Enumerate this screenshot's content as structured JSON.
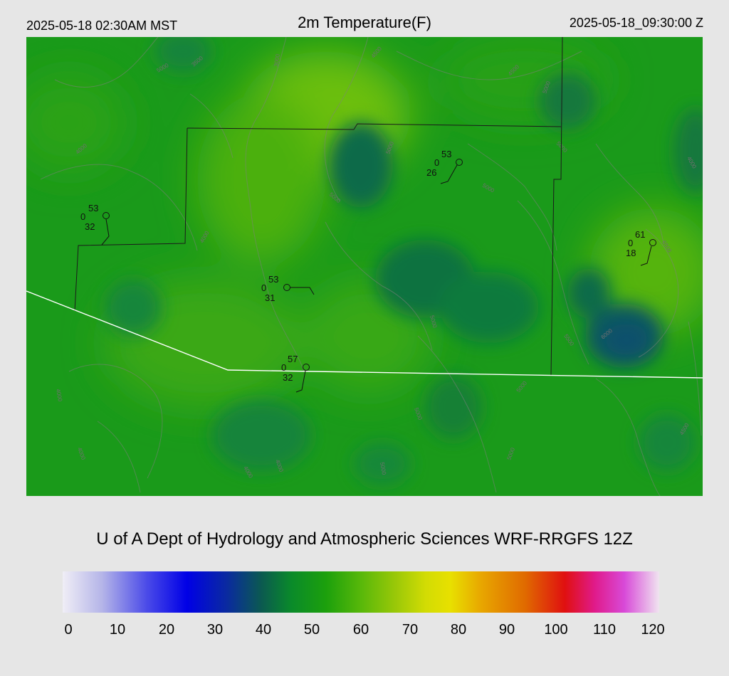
{
  "header": {
    "local_time": "2025-05-18 02:30AM MST",
    "title": "2m Temperature(F)",
    "utc_time": "2025-05-18_09:30:00 Z"
  },
  "credit": "U of A Dept of Hydrology and Atmospheric Sciences WRF-RRGFS 12Z",
  "colorbar": {
    "ticks": [
      "0",
      "10",
      "20",
      "30",
      "40",
      "50",
      "60",
      "70",
      "80",
      "90",
      "100",
      "110",
      "120"
    ],
    "min": 0,
    "max": 120,
    "stops": [
      {
        "value": 0,
        "color": "#f0eef6"
      },
      {
        "value": 8,
        "color": "#b4b4e8"
      },
      {
        "value": 17,
        "color": "#4a4ae8"
      },
      {
        "value": 25,
        "color": "#0000e6"
      },
      {
        "value": 33,
        "color": "#0a2aa0"
      },
      {
        "value": 40,
        "color": "#0b5a50"
      },
      {
        "value": 46,
        "color": "#0a8a2a"
      },
      {
        "value": 53,
        "color": "#1ca00c"
      },
      {
        "value": 60,
        "color": "#58b80a"
      },
      {
        "value": 67,
        "color": "#9ac808"
      },
      {
        "value": 73,
        "color": "#d2dc04"
      },
      {
        "value": 78,
        "color": "#e8e000"
      },
      {
        "value": 84,
        "color": "#e8a800"
      },
      {
        "value": 93,
        "color": "#e06a00"
      },
      {
        "value": 101,
        "color": "#e01010"
      },
      {
        "value": 107,
        "color": "#e01a8a"
      },
      {
        "value": 113,
        "color": "#d84ad8"
      },
      {
        "value": 120,
        "color": "#f0e4f0"
      }
    ]
  },
  "stations": [
    {
      "id": "stn-1",
      "temp": "53",
      "mid": "0",
      "dew": "32"
    },
    {
      "id": "stn-2",
      "temp": "53",
      "mid": "0",
      "dew": "26"
    },
    {
      "id": "stn-3",
      "temp": "53",
      "mid": "0",
      "dew": "31"
    },
    {
      "id": "stn-4",
      "temp": "57",
      "mid": "0",
      "dew": "32"
    },
    {
      "id": "stn-5",
      "temp": "61",
      "mid": "0",
      "dew": "18"
    }
  ],
  "contour_labels": [
    "3000",
    "3500",
    "4000",
    "4500",
    "5000",
    "5500",
    "6000",
    "6500",
    "7000"
  ]
}
